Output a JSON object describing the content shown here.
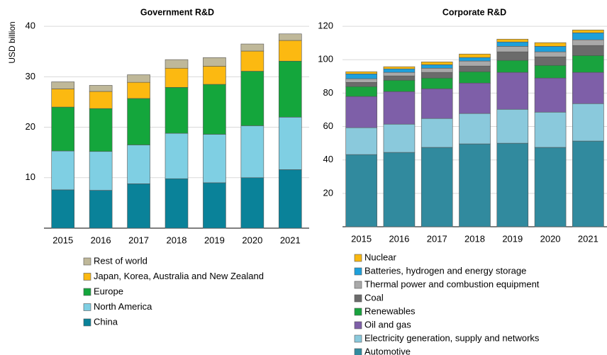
{
  "chart_data": [
    {
      "type": "bar",
      "stacked": true,
      "title": "Government R&D",
      "y_label": "USD billion",
      "categories": [
        "2015",
        "2016",
        "2017",
        "2018",
        "2019",
        "2020",
        "2021"
      ],
      "ylim": [
        0,
        41
      ],
      "yticks": [
        10,
        20,
        30,
        40
      ],
      "grid": true,
      "series": [
        {
          "name": "China",
          "color": "#0a8299",
          "values": [
            7.6,
            7.5,
            8.8,
            9.8,
            9.0,
            10.0,
            11.6
          ]
        },
        {
          "name": "North America",
          "color": "#7fcfe3",
          "values": [
            7.7,
            7.7,
            7.7,
            9.0,
            9.6,
            10.3,
            10.4
          ]
        },
        {
          "name": "Europe",
          "color": "#14a63c",
          "values": [
            8.7,
            8.5,
            9.2,
            9.1,
            9.9,
            10.8,
            11.1
          ]
        },
        {
          "name": "Japan, Korea, Australia and New Zealand",
          "color": "#fcb911",
          "values": [
            3.6,
            3.4,
            3.2,
            3.8,
            3.6,
            4.0,
            4.1
          ]
        },
        {
          "name": "Rest of world",
          "color": "#bfb899",
          "values": [
            1.4,
            1.2,
            1.5,
            1.7,
            1.7,
            1.4,
            1.3
          ]
        }
      ]
    },
    {
      "type": "bar",
      "stacked": true,
      "title": "Corporate R&D",
      "categories": [
        "2015",
        "2016",
        "2017",
        "2018",
        "2019",
        "2020",
        "2021"
      ],
      "ylim": [
        0,
        123
      ],
      "yticks": [
        20,
        40,
        60,
        80,
        100,
        120
      ],
      "grid": true,
      "series": [
        {
          "name": "Automotive",
          "color": "#318a9e",
          "values": [
            43.2,
            44.5,
            47.5,
            49.6,
            50.0,
            47.5,
            51.3
          ]
        },
        {
          "name": "Electricity generation, supply and networks",
          "color": "#8ac9dc",
          "values": [
            16.1,
            16.9,
            17.3,
            18.2,
            20.3,
            21.1,
            22.4
          ]
        },
        {
          "name": "Oil and gas",
          "color": "#7e5fa8",
          "values": [
            18.7,
            19.5,
            17.8,
            18.2,
            22.1,
            20.4,
            18.7
          ]
        },
        {
          "name": "Renewables",
          "color": "#19a33e",
          "values": [
            5.9,
            6.8,
            6.4,
            6.8,
            7.2,
            7.6,
            10.1
          ]
        },
        {
          "name": "Coal",
          "color": "#6b6b6b",
          "values": [
            2.5,
            2.6,
            3.4,
            3.4,
            5.1,
            5.1,
            6.0
          ]
        },
        {
          "name": "Thermal power and combustion equipment",
          "color": "#a9a9a9",
          "values": [
            2.2,
            2.1,
            2.5,
            3.0,
            3.3,
            3.0,
            3.4
          ]
        },
        {
          "name": "Batteries, hydrogen and energy storage",
          "color": "#1ea0db",
          "values": [
            2.9,
            2.1,
            2.1,
            2.1,
            2.6,
            3.3,
            4.2
          ]
        },
        {
          "name": "Nuclear",
          "color": "#f9b810",
          "values": [
            1.3,
            1.3,
            1.7,
            2.1,
            1.7,
            2.2,
            1.7
          ]
        }
      ]
    }
  ]
}
